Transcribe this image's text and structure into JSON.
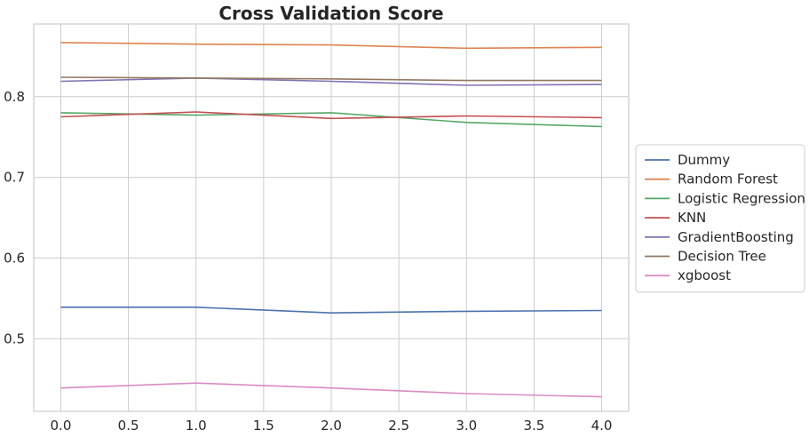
{
  "chart_data": {
    "type": "line",
    "title": "Cross Validation Score",
    "xlabel": "",
    "ylabel": "",
    "x": [
      0,
      1,
      2,
      3,
      4
    ],
    "xlim": [
      -0.2,
      4.2
    ],
    "ylim": [
      0.41,
      0.89
    ],
    "xticks": [
      0.0,
      0.5,
      1.0,
      1.5,
      2.0,
      2.5,
      3.0,
      3.5,
      4.0
    ],
    "xtick_labels": [
      "0.0",
      "0.5",
      "1.0",
      "1.5",
      "2.0",
      "2.5",
      "3.0",
      "3.5",
      "4.0"
    ],
    "yticks": [
      0.5,
      0.6,
      0.7,
      0.8
    ],
    "ytick_labels": [
      "0.5",
      "0.6",
      "0.7",
      "0.8"
    ],
    "grid": true,
    "legend_position": "right",
    "series": [
      {
        "name": "Dummy",
        "color": "#4c72b0",
        "values": [
          0.539,
          0.539,
          0.532,
          0.534,
          0.535
        ]
      },
      {
        "name": "Random Forest",
        "color": "#dd8452",
        "values": [
          0.867,
          0.865,
          0.864,
          0.86,
          0.861
        ]
      },
      {
        "name": "Logistic Regression",
        "color": "#55a868",
        "values": [
          0.78,
          0.777,
          0.78,
          0.768,
          0.763
        ]
      },
      {
        "name": "KNN",
        "color": "#c44e52",
        "values": [
          0.775,
          0.781,
          0.773,
          0.776,
          0.774
        ]
      },
      {
        "name": "GradientBoosting",
        "color": "#8172b3",
        "values": [
          0.819,
          0.823,
          0.819,
          0.814,
          0.815
        ]
      },
      {
        "name": "Decision Tree",
        "color": "#937860",
        "values": [
          0.824,
          0.823,
          0.822,
          0.82,
          0.82
        ]
      },
      {
        "name": "xgboost",
        "color": "#da8bc3",
        "values": [
          0.439,
          0.445,
          0.439,
          0.432,
          0.428
        ]
      }
    ]
  }
}
